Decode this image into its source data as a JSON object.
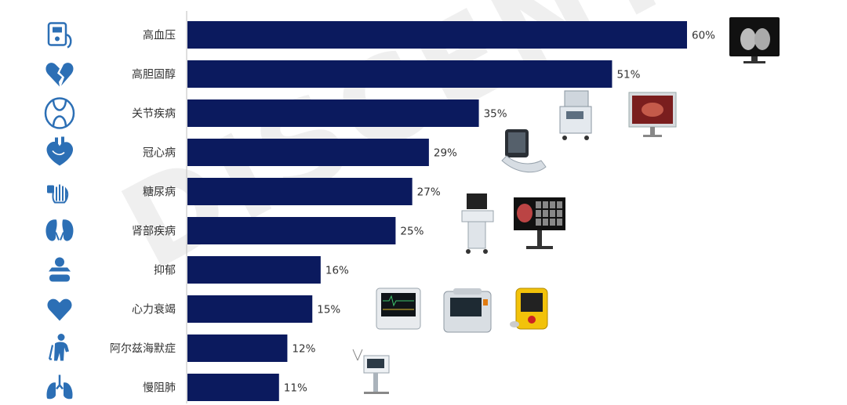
{
  "chart_data": {
    "type": "bar",
    "orientation": "horizontal",
    "categories": [
      "高血压",
      "高胆固醇",
      "关节疾病",
      "冠心病",
      "糖尿病",
      "肾部疾病",
      "抑郁",
      "心力衰竭",
      "阿尔兹海默症",
      "慢阻肺"
    ],
    "values": [
      60,
      51,
      35,
      29,
      27,
      25,
      16,
      15,
      12,
      11
    ],
    "value_labels": [
      "60%",
      "51%",
      "35%",
      "29%",
      "27%",
      "25%",
      "16%",
      "15%",
      "12%",
      "11%"
    ],
    "xlim": [
      0,
      64
    ],
    "bar_color": "#0b1a5e",
    "grid": false,
    "legend": "none"
  },
  "row_icons": [
    "medical-device-icon",
    "broken-heart-icon",
    "knee-joint-icon",
    "anatomical-heart-icon",
    "hand-glucose-icon",
    "kidneys-icon",
    "depression-icon",
    "heart-icon",
    "person-cane-icon",
    "lungs-icon"
  ],
  "equipment_images": [
    "mammography-monitor-image",
    "anesthesia-machine-image",
    "surgical-monitor-image",
    "ultrasound-probe-device-image",
    "ultrasound-cart-image",
    "imaging-display-stand-image",
    "patient-monitor-image",
    "defibrillator-monitor-image",
    "aed-device-image",
    "ventilator-image"
  ],
  "watermark": "DISCENT",
  "colors": {
    "icon": "#2c6fb5",
    "label": "#333333",
    "axis": "#bfbfbf"
  }
}
